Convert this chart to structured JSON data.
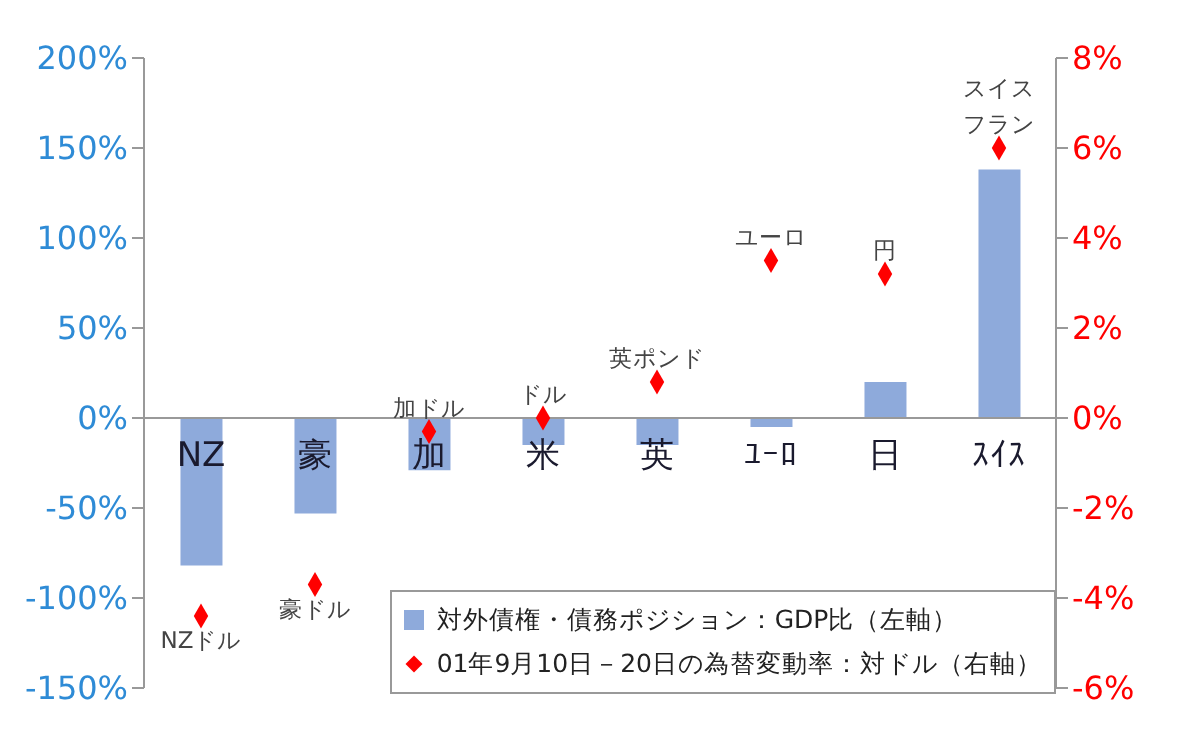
{
  "chart_data": {
    "type": "bar",
    "categories": [
      "NZ",
      "豪",
      "加",
      "米",
      "英",
      "ﾕｰﾛ",
      "日",
      "ｽｲｽ"
    ],
    "series": [
      {
        "name": "対外債権・債務ポジション：GDP比（左軸）",
        "type": "bar",
        "color": "#8eaadb",
        "values": [
          -82,
          -53,
          -29,
          -15,
          -15,
          -5,
          20,
          138
        ]
      },
      {
        "name": "01年9月10日－20日の為替変動率：対ドル（右軸）",
        "type": "scatter",
        "axis": "y2",
        "color": "#ff0000",
        "values": [
          -4.4,
          -3.7,
          -0.3,
          0,
          0.8,
          3.5,
          3.2,
          6.0
        ]
      }
    ],
    "ylim": [
      -150,
      200
    ],
    "yticks": [
      {
        "value": -150,
        "label": "-150%"
      },
      {
        "value": -100,
        "label": "-100%"
      },
      {
        "value": -50,
        "label": "-50%"
      },
      {
        "value": 0,
        "label": "0%"
      },
      {
        "value": 50,
        "label": "50%"
      },
      {
        "value": 100,
        "label": "100%"
      },
      {
        "value": 150,
        "label": "150%"
      },
      {
        "value": 200,
        "label": "200%"
      }
    ],
    "y2lim": [
      -6,
      8
    ],
    "y2ticks": [
      {
        "value": -6,
        "label": "-6%"
      },
      {
        "value": -4,
        "label": "-4%"
      },
      {
        "value": -2,
        "label": "-2%"
      },
      {
        "value": 0,
        "label": "0%"
      },
      {
        "value": 2,
        "label": "2%"
      },
      {
        "value": 4,
        "label": "4%"
      },
      {
        "value": 6,
        "label": "6%"
      },
      {
        "value": 8,
        "label": "8%"
      }
    ],
    "marker": "diamond",
    "grid": false,
    "legend": "bottom right",
    "annotations": [
      "NZドル",
      "豪ドル",
      "加ドル",
      "ドル",
      "英ポンド",
      "ユーロ",
      "円",
      "スイスフラン"
    ]
  }
}
